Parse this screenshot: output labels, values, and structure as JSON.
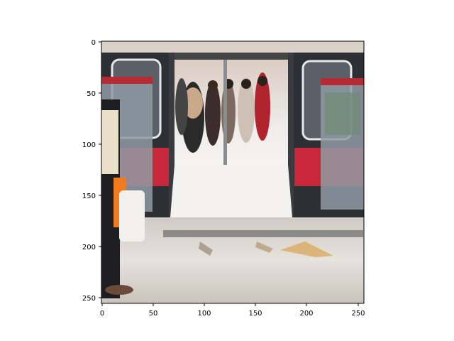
{
  "figure": {
    "x_ticks": [
      "0",
      "50",
      "100",
      "150",
      "200",
      "250"
    ],
    "y_ticks": [
      "0",
      "50",
      "100",
      "150",
      "200",
      "250"
    ],
    "image_extent": {
      "x": [
        0,
        256
      ],
      "y": [
        256,
        0
      ]
    },
    "image_description_colors": {
      "train_body": "#2a2a30",
      "train_red_band": "#c8283a",
      "platform_floor": "#d8d4cf",
      "interior_light": "#f2f0ee",
      "bag_orange": "#f07a1e"
    }
  }
}
